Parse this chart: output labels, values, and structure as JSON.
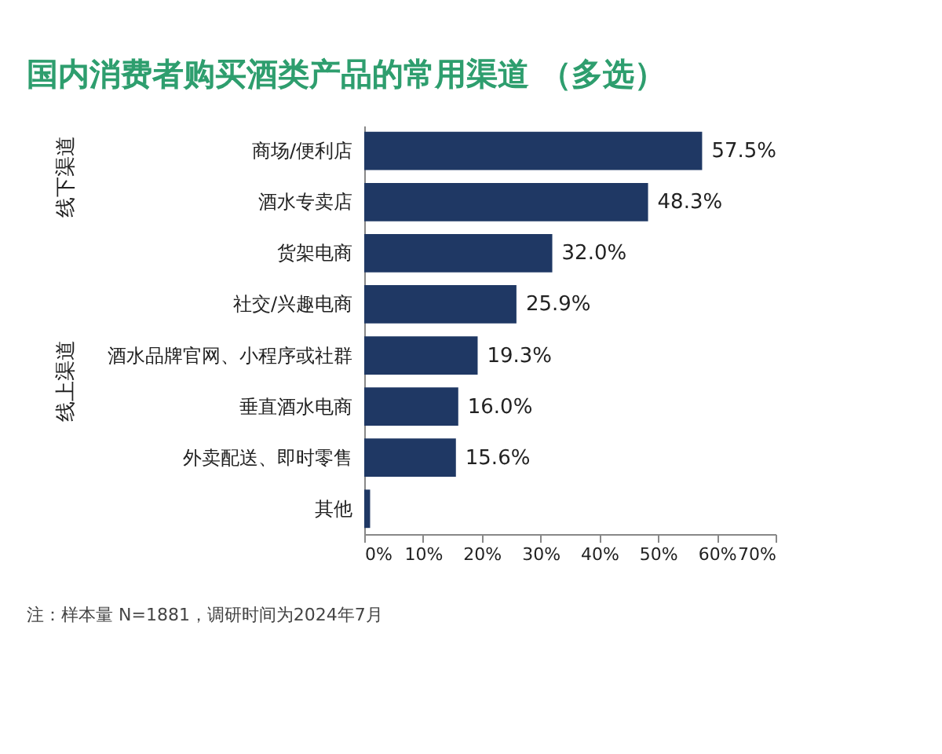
{
  "chart_data": {
    "type": "bar",
    "orientation": "horizontal",
    "title": "国内消费者购买酒类产品的常用渠道 （多选）",
    "categories": [
      "商场/便利店",
      "酒水专卖店",
      "货架电商",
      "社交/兴趣电商",
      "酒水品牌官网、小程序或社群",
      "垂直酒水电商",
      "外卖配送、即时零售",
      "其他"
    ],
    "values": [
      57.5,
      48.3,
      32.0,
      25.9,
      19.3,
      16.0,
      15.6,
      1.0
    ],
    "value_labels": [
      "57.5%",
      "48.3%",
      "32.0%",
      "25.9%",
      "19.3%",
      "16.0%",
      "15.6%",
      null
    ],
    "color": "#1f3864",
    "xlim": [
      0,
      70
    ],
    "xticks": [
      {
        "value": 0,
        "label": "0%"
      },
      {
        "value": 10,
        "label": "10%"
      },
      {
        "value": 20,
        "label": "20%"
      },
      {
        "value": 30,
        "label": "30%"
      },
      {
        "value": 40,
        "label": "40%"
      },
      {
        "value": 50,
        "label": "50%"
      },
      {
        "value": 60,
        "label": "60%"
      },
      {
        "value": 70,
        "label": "70%"
      }
    ],
    "grid": false,
    "annotations": [
      "线下渠道",
      "线上渠道",
      "注：样本量 N=1881，调研时间为2024年7月"
    ]
  }
}
